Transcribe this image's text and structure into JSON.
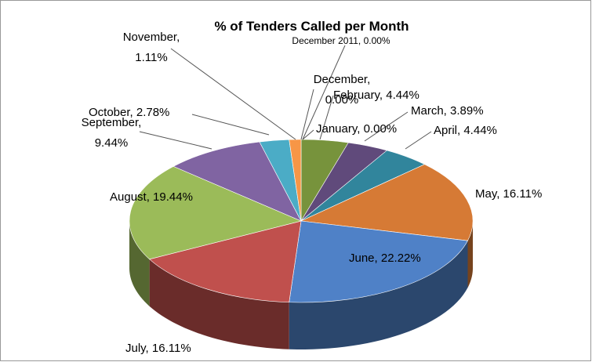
{
  "chart_data": {
    "type": "pie3d",
    "title": "% of Tenders Called per Month",
    "values": [
      0.0,
      0.0,
      4.44,
      3.89,
      4.44,
      16.11,
      22.22,
      16.11,
      19.44,
      9.44,
      2.78,
      1.11,
      0.0
    ],
    "value_labels": [
      "December 2011, 0.00%",
      "January, 0.00%",
      "February, 4.44%",
      "March, 3.89%",
      "April, 4.44%",
      "May, 16.11%",
      "June, 22.22%",
      "July, 16.11%",
      "August, 19.44%",
      "September, 9.44%",
      "October, 2.78%",
      "November, 1.11%",
      "December, 0.00%"
    ],
    "colors": [
      "#4f81bd",
      "#c0504d",
      "#77933c",
      "#604a7b",
      "#31859c",
      "#d67a35",
      "#4f81c7",
      "#c0504d",
      "#9bbb59",
      "#8064a2",
      "#4bacc6",
      "#f79646",
      "#4f81bd"
    ]
  }
}
